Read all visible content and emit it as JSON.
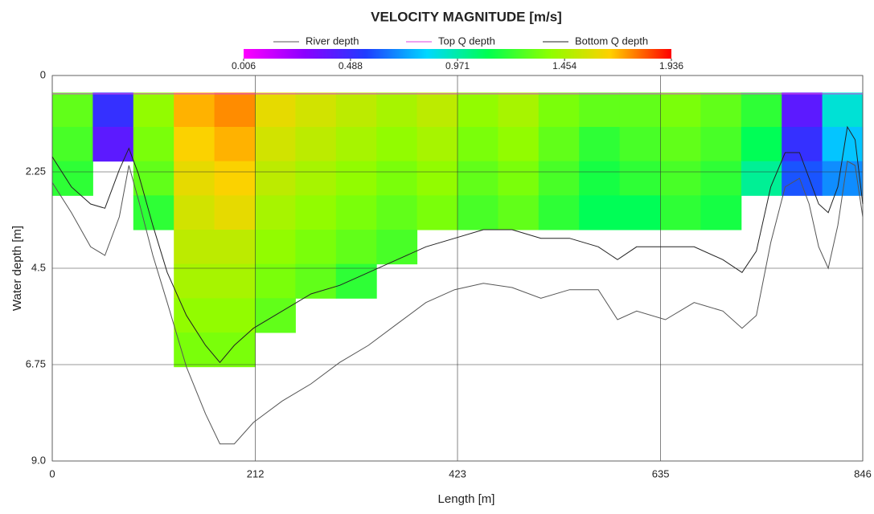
{
  "chart_data": {
    "type": "heatmap",
    "title": "VELOCITY MAGNITUDE [m/s]",
    "x_label": "Length [m]",
    "y_label": "Water depth [m]",
    "xlim": [
      0,
      846
    ],
    "xticks": [
      0,
      212,
      423,
      635,
      846
    ],
    "ylim": [
      0,
      9
    ],
    "yticks": [
      0,
      2.25,
      4.5,
      6.75,
      {
        "value": 9,
        "label": "9.0"
      }
    ],
    "y_inverted": true,
    "grid": true,
    "zlim": [
      0.006,
      1.936
    ],
    "colorbar_ticks": [
      0.006,
      0.488,
      0.971,
      1.454,
      1.936
    ],
    "colormap": [
      "#ff00ff",
      "#8a00ff",
      "#1f3cff",
      "#00d8ff",
      "#00ff50",
      "#8cff00",
      "#ffd000",
      "#ff0000"
    ],
    "heatmap": {
      "x_edges": [
        0,
        42.3,
        84.6,
        126.9,
        169.2,
        211.5,
        253.8,
        296.1,
        338.4,
        380.7,
        423,
        465.3,
        507.6,
        549.9,
        592.2,
        634.5,
        676.8,
        719.1,
        761.4,
        803.7,
        846
      ],
      "depth_edges": [
        0.4,
        1.2,
        2.0,
        2.8,
        3.6,
        4.4,
        5.2,
        6.0,
        6.8
      ],
      "values": [
        [
          1.3,
          1.25,
          1.2,
          null,
          null,
          null,
          null,
          null
        ],
        [
          0.5,
          0.4,
          null,
          null,
          null,
          null,
          null,
          null
        ],
        [
          1.4,
          1.35,
          1.3,
          1.2,
          null,
          null,
          null,
          null
        ],
        [
          1.7,
          1.65,
          1.6,
          1.55,
          1.5,
          1.45,
          1.4,
          1.35
        ],
        [
          1.75,
          1.7,
          1.65,
          1.6,
          1.5,
          1.45,
          1.4,
          1.35
        ],
        [
          1.6,
          1.55,
          1.5,
          1.45,
          1.4,
          1.35,
          1.3,
          null
        ],
        [
          1.55,
          1.5,
          1.45,
          1.4,
          1.35,
          1.3,
          null,
          null
        ],
        [
          1.5,
          1.45,
          1.4,
          1.35,
          1.3,
          1.2,
          null,
          null
        ],
        [
          1.45,
          1.4,
          1.35,
          1.3,
          1.25,
          null,
          null,
          null
        ],
        [
          1.5,
          1.45,
          1.4,
          1.35,
          null,
          null,
          null,
          null
        ],
        [
          1.4,
          1.35,
          1.3,
          1.25,
          null,
          null,
          null,
          null
        ],
        [
          1.45,
          1.4,
          1.35,
          1.3,
          null,
          null,
          null,
          null
        ],
        [
          1.35,
          1.3,
          1.25,
          1.2,
          null,
          null,
          null,
          null
        ],
        [
          1.3,
          1.2,
          1.15,
          1.1,
          null,
          null,
          null,
          null
        ],
        [
          1.3,
          1.25,
          1.2,
          1.1,
          null,
          null,
          null,
          null
        ],
        [
          1.35,
          1.3,
          1.25,
          1.2,
          null,
          null,
          null,
          null
        ],
        [
          1.3,
          1.25,
          1.2,
          1.15,
          null,
          null,
          null,
          null
        ],
        [
          1.2,
          1.1,
          1.0,
          null,
          null,
          null,
          null,
          null
        ],
        [
          0.4,
          0.5,
          0.6,
          null,
          null,
          null,
          null,
          null
        ],
        [
          0.9,
          0.8,
          0.7,
          null,
          null,
          null,
          null,
          null
        ]
      ]
    },
    "x": [
      0,
      20,
      40,
      55,
      70,
      80,
      90,
      105,
      120,
      140,
      160,
      175,
      190,
      210,
      240,
      270,
      300,
      330,
      360,
      390,
      420,
      450,
      480,
      510,
      540,
      570,
      590,
      610,
      640,
      670,
      700,
      720,
      735,
      750,
      765,
      780,
      790,
      800,
      810,
      820,
      830,
      838,
      846
    ],
    "series": [
      {
        "name": "River depth",
        "color": "#555555",
        "values": [
          2.5,
          3.2,
          4.0,
          4.2,
          3.3,
          2.1,
          2.9,
          4.2,
          5.3,
          6.8,
          7.9,
          8.6,
          8.6,
          8.1,
          7.6,
          7.2,
          6.7,
          6.3,
          5.8,
          5.3,
          5.0,
          4.85,
          4.95,
          5.2,
          5.0,
          5.0,
          5.7,
          5.5,
          5.7,
          5.3,
          5.5,
          5.9,
          5.6,
          3.9,
          2.6,
          2.4,
          3.0,
          4.0,
          4.5,
          3.5,
          2.0,
          2.1,
          3.3
        ]
      },
      {
        "name": "Top Q depth",
        "color": "#e040e0",
        "values": [
          0.43,
          0.43,
          0.43,
          0.43,
          0.43,
          0.43,
          0.43,
          0.43,
          0.43,
          0.43,
          0.43,
          0.43,
          0.43,
          0.43,
          0.43,
          0.43,
          0.43,
          0.43,
          0.43,
          0.43,
          0.43,
          0.43,
          0.43,
          0.43,
          0.43,
          0.43,
          0.43,
          0.43,
          0.43,
          0.43,
          0.43,
          0.43,
          0.43,
          0.43,
          0.43,
          0.43,
          0.43,
          0.43,
          0.43,
          0.43,
          0.43,
          0.43,
          0.43
        ]
      },
      {
        "name": "Bottom Q depth",
        "color": "#222222",
        "values": [
          1.9,
          2.6,
          3.0,
          3.1,
          2.2,
          1.7,
          2.3,
          3.5,
          4.6,
          5.6,
          6.3,
          6.7,
          6.3,
          5.9,
          5.5,
          5.1,
          4.9,
          4.6,
          4.3,
          4.0,
          3.8,
          3.6,
          3.6,
          3.8,
          3.8,
          4.0,
          4.3,
          4.0,
          4.0,
          4.0,
          4.3,
          4.6,
          4.1,
          2.6,
          1.8,
          1.8,
          2.4,
          3.0,
          3.2,
          2.6,
          1.2,
          1.5,
          3.0
        ]
      }
    ]
  }
}
